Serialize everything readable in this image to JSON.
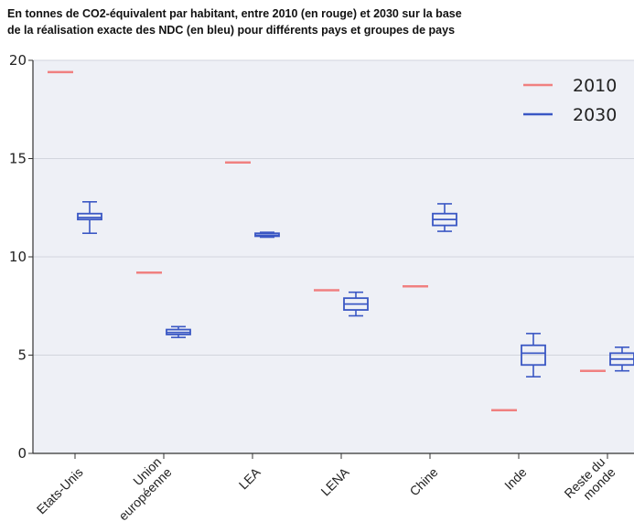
{
  "header": {
    "title_line1": "En tonnes de CO2-équivalent par habitant, entre 2010 (en rouge) et 2030 sur la base",
    "title_line2": "de la réalisation exacte des NDC (en bleu) pour différents pays et groupes de pays"
  },
  "chart_data": {
    "type": "box",
    "ylim": [
      0,
      20
    ],
    "yticks": [
      0,
      5,
      10,
      15,
      20
    ],
    "grid": true,
    "legend_position": "top-right",
    "colors": {
      "2010": "#f08080",
      "2030": "#3a57c4"
    },
    "legend": [
      {
        "label": "2010",
        "color": "#f08080"
      },
      {
        "label": "2030",
        "color": "#3a57c4"
      }
    ],
    "categories": [
      {
        "label": [
          "Etats-Unis"
        ],
        "y2010": 19.4,
        "box2030": {
          "min": 11.2,
          "q1": 11.9,
          "median": 12.0,
          "q3": 12.2,
          "max": 12.8
        }
      },
      {
        "label": [
          "Union",
          "européenne"
        ],
        "y2010": 9.2,
        "box2030": {
          "min": 5.9,
          "q1": 6.05,
          "median": 6.15,
          "q3": 6.3,
          "max": 6.45
        }
      },
      {
        "label": [
          "LEA"
        ],
        "y2010": 14.8,
        "box2030": {
          "min": 11.0,
          "q1": 11.05,
          "median": 11.1,
          "q3": 11.2,
          "max": 11.25
        }
      },
      {
        "label": [
          "LENA"
        ],
        "y2010": 8.3,
        "box2030": {
          "min": 7.0,
          "q1": 7.3,
          "median": 7.6,
          "q3": 7.9,
          "max": 8.2
        }
      },
      {
        "label": [
          "Chine"
        ],
        "y2010": 8.5,
        "box2030": {
          "min": 11.3,
          "q1": 11.6,
          "median": 11.9,
          "q3": 12.2,
          "max": 12.7
        }
      },
      {
        "label": [
          "Inde"
        ],
        "y2010": 2.2,
        "box2030": {
          "min": 3.9,
          "q1": 4.5,
          "median": 5.1,
          "q3": 5.5,
          "max": 6.1
        }
      },
      {
        "label": [
          "Reste du",
          "monde"
        ],
        "y2010": 4.2,
        "box2030": {
          "min": 4.2,
          "q1": 4.5,
          "median": 4.8,
          "q3": 5.1,
          "max": 5.4
        }
      }
    ]
  }
}
